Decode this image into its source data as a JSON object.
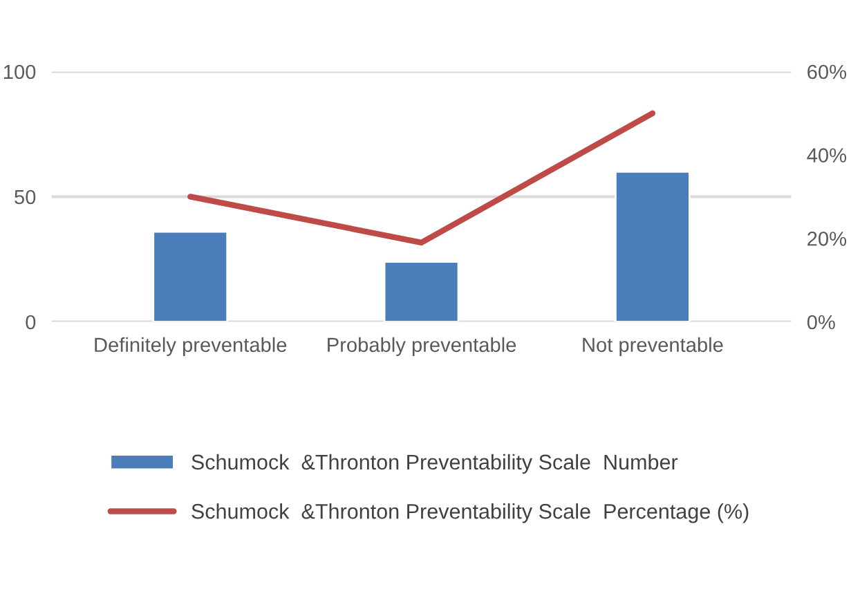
{
  "chart_data": {
    "type": "bar",
    "categories": [
      "Definitely preventable",
      "Probably preventable",
      "Not preventable"
    ],
    "series": [
      {
        "name": "Schumock  &Thronton Preventability Scale  Number",
        "color": "#4a7ebb",
        "values": [
          36,
          24,
          60
        ]
      },
      {
        "name": "Schumock  &Thronton Preventability Scale  Percentage (%)",
        "color": "#be4b48",
        "values": [
          30,
          19,
          50
        ],
        "type": "line",
        "axis": "y2"
      }
    ],
    "ylim": [
      0,
      100
    ],
    "yticks": [
      0,
      50,
      100
    ],
    "y2lim": [
      0,
      60
    ],
    "y2ticks": [
      {
        "value": 0,
        "label": "0%"
      },
      {
        "value": 20,
        "label": "20%"
      },
      {
        "value": 40,
        "label": "40%"
      },
      {
        "value": 60,
        "label": "60%"
      }
    ],
    "grid": "y",
    "legend": "bottom",
    "marker": "none"
  }
}
